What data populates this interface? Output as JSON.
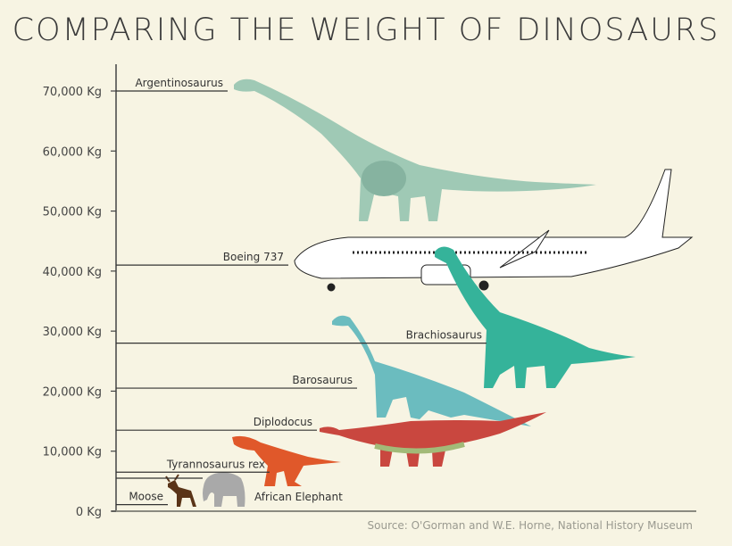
{
  "chart_data": {
    "type": "bar",
    "title": "COMPARING THE WEIGHT OF DINOSAURS",
    "source": "Source: O'Gorman and W.E. Horne, National History Museum",
    "ylim": [
      0,
      70000
    ],
    "yticks": [
      "0 Kg",
      "10,000 Kg",
      "20,000 Kg",
      "30,000 Kg",
      "40,000 Kg",
      "50,000 Kg",
      "60,000 Kg",
      "70,000 Kg"
    ],
    "ytick_values": [
      0,
      10000,
      20000,
      30000,
      40000,
      50000,
      60000,
      70000
    ],
    "grid": false,
    "items": [
      {
        "label": "Argentinosaurus",
        "value": 70000,
        "color": "#9fc9b5"
      },
      {
        "label": "Boeing 737",
        "value": 41000,
        "color": "#ffffff"
      },
      {
        "label": "Brachiosaurus",
        "value": 28000,
        "color": "#35b39a"
      },
      {
        "label": "Barosaurus",
        "value": 20500,
        "color": "#6bbcbf"
      },
      {
        "label": "Diplodocus",
        "value": 13500,
        "color": "#c9473f"
      },
      {
        "label": "Tyrannosaurus rex",
        "value": 6500,
        "color": "#e0582a"
      },
      {
        "label": "African Elephant",
        "value": 5500,
        "color": "#a9a9a9"
      },
      {
        "label": "Moose",
        "value": 1100,
        "color": "#5a3418"
      }
    ]
  }
}
